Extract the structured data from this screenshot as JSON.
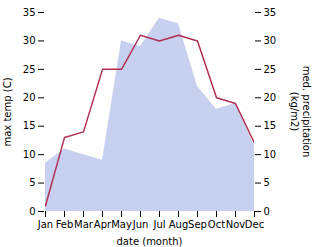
{
  "chart_data": {
    "type": "line",
    "xlabel": "date (month)",
    "ylabel": "max temp (C)",
    "y2label": "med. precipitation\n(kg/m2)",
    "categories": [
      "Jan",
      "Feb",
      "Mar",
      "Apr",
      "May",
      "Jun",
      "Jul",
      "Aug",
      "Sep",
      "Oct",
      "Nov",
      "Dec"
    ],
    "series": [
      {
        "type": "area",
        "axis": "y2",
        "color": "#b0bce8",
        "values": [
          8.5,
          11,
          10,
          9,
          30,
          29,
          34,
          33,
          22,
          18,
          19,
          11.5
        ]
      },
      {
        "type": "line",
        "color": "#b03050",
        "values": [
          1,
          13,
          14,
          25,
          25,
          31,
          30,
          31,
          30,
          20,
          19,
          12
        ]
      }
    ],
    "ylim": [
      0,
      35
    ],
    "yticks": [
      0,
      5,
      10,
      15,
      20,
      25,
      30,
      35
    ],
    "y2lim": [
      0,
      35
    ],
    "y2ticks": [
      0,
      5,
      10,
      15,
      20,
      25,
      30,
      35
    ]
  }
}
